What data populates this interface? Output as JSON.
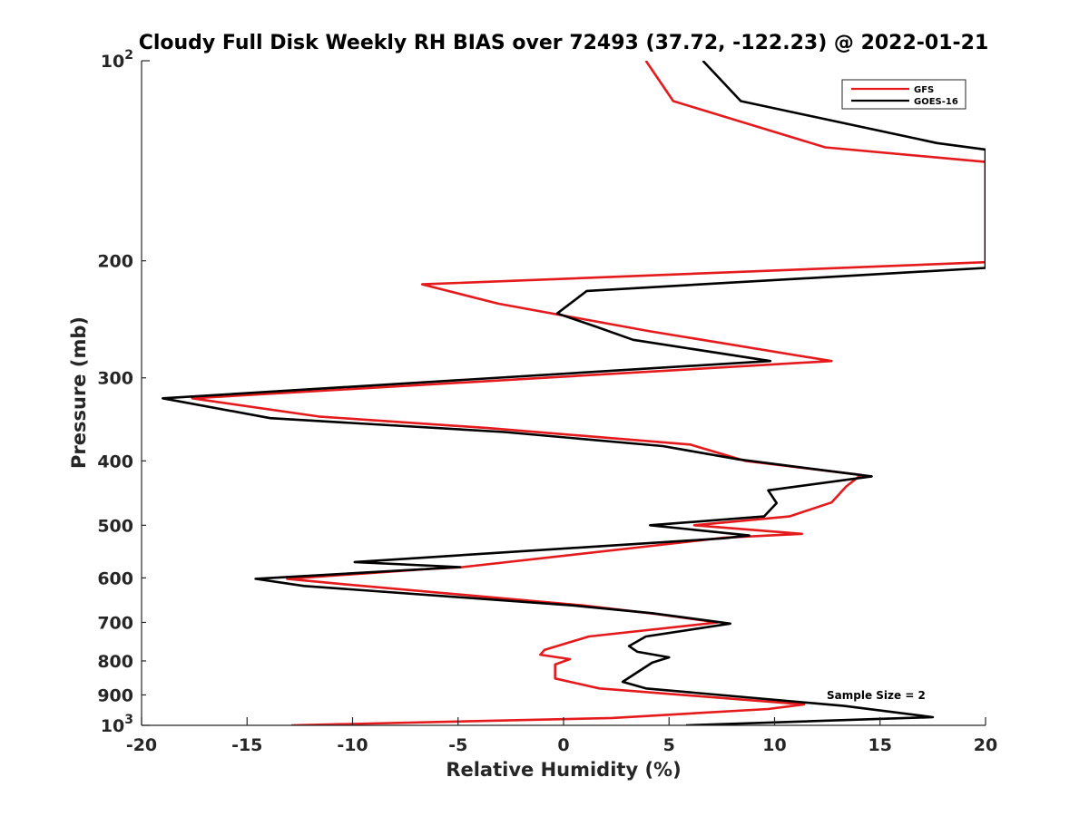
{
  "chart_data": {
    "type": "line",
    "title": "Cloudy Full Disk Weekly RH BIAS over 72493 (37.72, -122.23) @ 2022-01-21",
    "xlabel": "Relative Humidity (%)",
    "ylabel": "Pressure (mb)",
    "xlim": [
      -20,
      20
    ],
    "ylim": [
      100,
      1000
    ],
    "y_scale": "log",
    "y_reversed": true,
    "grid": false,
    "legend_position": "top-right",
    "x_ticks": [
      -20,
      -15,
      -10,
      -5,
      0,
      5,
      10,
      15,
      20
    ],
    "x_tick_labels": [
      "-20",
      "-15",
      "-10",
      "-5",
      "0",
      "5",
      "10",
      "15",
      "20"
    ],
    "y_ticks": [
      100,
      200,
      300,
      400,
      500,
      600,
      700,
      800,
      900,
      1000
    ],
    "y_tick_labels": [
      {
        "base": "10",
        "exp": "2"
      },
      {
        "base": "200",
        "exp": ""
      },
      {
        "base": "300",
        "exp": ""
      },
      {
        "base": "400",
        "exp": ""
      },
      {
        "base": "500",
        "exp": ""
      },
      {
        "base": "600",
        "exp": ""
      },
      {
        "base": "700",
        "exp": ""
      },
      {
        "base": "800",
        "exp": ""
      },
      {
        "base": "900",
        "exp": ""
      },
      {
        "base": "10",
        "exp": "3"
      }
    ],
    "annotation": "Sample Size = 2",
    "series": [
      {
        "name": "GFS",
        "color": "#e41a1c",
        "points": [
          [
            3.9,
            100
          ],
          [
            5.2,
            115
          ],
          [
            12.4,
            135
          ],
          [
            20,
            142
          ],
          [
            20,
            201
          ],
          [
            -6.7,
            217
          ],
          [
            -3.1,
            232
          ],
          [
            4,
            255
          ],
          [
            12.7,
            283
          ],
          [
            -17.6,
            322
          ],
          [
            -11.6,
            343
          ],
          [
            -3.6,
            357
          ],
          [
            6,
            378
          ],
          [
            8.6,
            400
          ],
          [
            14.1,
            420
          ],
          [
            13.4,
            437
          ],
          [
            12.7,
            462
          ],
          [
            10.7,
            485
          ],
          [
            6.2,
            500
          ],
          [
            11.3,
            515
          ],
          [
            7.6,
            522
          ],
          [
            -4.8,
            578
          ],
          [
            -6.5,
            582
          ],
          [
            -13.1,
            602
          ],
          [
            -10.5,
            613
          ],
          [
            0.9,
            660
          ],
          [
            4.4,
            680
          ],
          [
            7.3,
            700
          ],
          [
            1.2,
            735
          ],
          [
            -0.9,
            770
          ],
          [
            -1.1,
            783
          ],
          [
            0.3,
            795
          ],
          [
            -0.4,
            810
          ],
          [
            -0.4,
            850
          ],
          [
            1.7,
            880
          ],
          [
            11.4,
            930
          ],
          [
            9.7,
            945
          ],
          [
            2.3,
            975
          ],
          [
            -12.9,
            1000
          ]
        ]
      },
      {
        "name": "GOES-16",
        "color": "#000000",
        "points": [
          [
            6.6,
            100
          ],
          [
            8.4,
            115
          ],
          [
            17.7,
            133
          ],
          [
            20,
            136
          ],
          [
            20,
            205
          ],
          [
            1.1,
            222
          ],
          [
            -0.3,
            240
          ],
          [
            1.5,
            251
          ],
          [
            3.3,
            263
          ],
          [
            9.8,
            283
          ],
          [
            -19,
            322
          ],
          [
            -13.9,
            345
          ],
          [
            -2.8,
            362
          ],
          [
            4.7,
            380
          ],
          [
            8.3,
            398
          ],
          [
            14.6,
            422
          ],
          [
            9.7,
            443
          ],
          [
            10.1,
            463
          ],
          [
            9.5,
            485
          ],
          [
            4.1,
            500
          ],
          [
            8.8,
            518
          ],
          [
            7.6,
            523
          ],
          [
            -9.9,
            568
          ],
          [
            -4.9,
            578
          ],
          [
            -14.6,
            602
          ],
          [
            -12.3,
            617
          ],
          [
            0.4,
            660
          ],
          [
            4.2,
            678
          ],
          [
            7.9,
            703
          ],
          [
            3.9,
            735
          ],
          [
            3.1,
            760
          ],
          [
            3.5,
            775
          ],
          [
            5,
            790
          ],
          [
            4.2,
            805
          ],
          [
            2.8,
            860
          ],
          [
            3.9,
            880
          ],
          [
            13.3,
            935
          ],
          [
            17.5,
            972
          ],
          [
            5.8,
            1000
          ]
        ]
      }
    ]
  }
}
